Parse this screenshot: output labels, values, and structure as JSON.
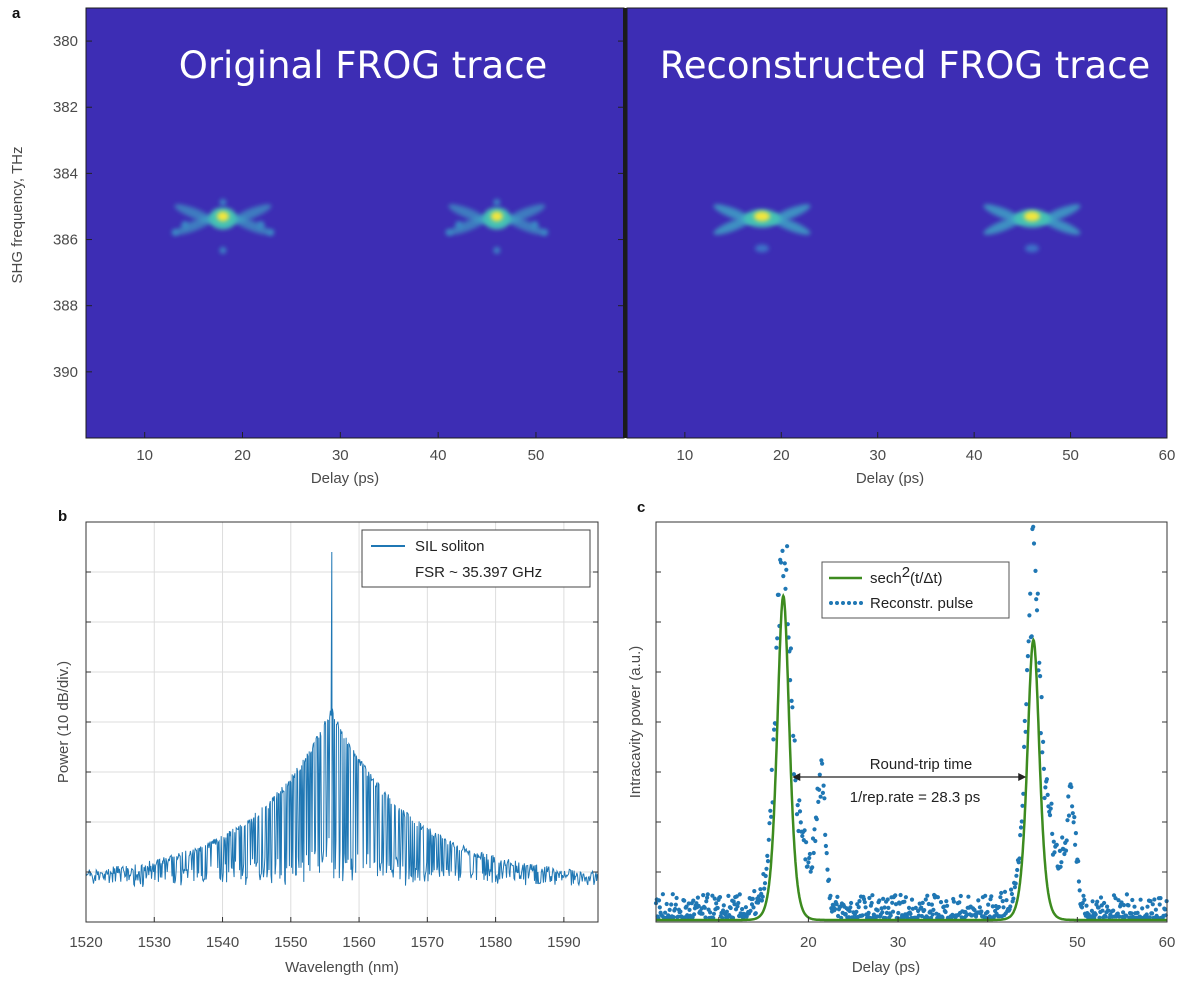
{
  "panels": [
    {
      "label": "a",
      "charts": [
        {
          "type": "heatmap",
          "title": "Original FROG trace",
          "xlabel": "Delay (ps)",
          "ylabel": "SHG frequency, THz",
          "xlim": [
            4,
            59
          ],
          "ylim": [
            379,
            392
          ],
          "xticks": [
            10,
            20,
            30,
            40,
            50
          ],
          "yticks": [
            380,
            382,
            384,
            386,
            388,
            390
          ],
          "peaks": [
            {
              "delay": 18,
              "frequency": 385.3
            },
            {
              "delay": 46,
              "frequency": 385.3
            }
          ],
          "colors": {
            "background": "#3d2db4",
            "peak": "#f2e63c"
          }
        },
        {
          "type": "heatmap",
          "title": "Reconstructed FROG trace",
          "xlabel": "Delay (ps)",
          "ylabel": "",
          "xlim": [
            4,
            60
          ],
          "ylim": [
            379,
            392
          ],
          "xticks": [
            10,
            20,
            30,
            40,
            50,
            60
          ],
          "yticks": [],
          "peaks": [
            {
              "delay": 18,
              "frequency": 385.3
            },
            {
              "delay": 46,
              "frequency": 385.3
            }
          ],
          "colors": {
            "background": "#3d2db4",
            "peak": "#f2e63c"
          }
        }
      ]
    },
    {
      "label": "b",
      "chart": {
        "type": "line",
        "xlabel": "Wavelength (nm)",
        "ylabel": "Power (10 dB/div.)",
        "xlim": [
          1520,
          1595
        ],
        "xticks": [
          1520,
          1530,
          1540,
          1550,
          1560,
          1570,
          1580,
          1590
        ],
        "ydivisions": 7,
        "grid": true,
        "legend": {
          "placement": "top-right",
          "entries": [
            "SIL soliton",
            "FSR ~ 35.397 GHz"
          ]
        },
        "series": [
          {
            "name": "SIL soliton",
            "center_nm": 1556,
            "peak_div": 4.3,
            "floor_div": 0.9,
            "color": "#1f77b4"
          }
        ]
      }
    },
    {
      "label": "c",
      "chart": {
        "type": "scatter",
        "xlabel": "Delay (ps)",
        "ylabel": "Intracavity power (a.u.)",
        "xlim": [
          3,
          60
        ],
        "xticks": [
          10,
          20,
          30,
          40,
          50,
          60
        ],
        "ylim": [
          0,
          1
        ],
        "legend": {
          "placement": "top-left",
          "entries": [
            "sech",
            "2",
            "(t/Δt)",
            "Reconstr. pulse"
          ]
        },
        "series": [
          {
            "name": "sech2(t/Δt)",
            "type": "line",
            "centers": [
              17.2,
              45.1
            ],
            "amplitudes": [
              0.81,
              0.7
            ],
            "width_ps": 0.9,
            "color": "#3d8b1f"
          },
          {
            "name": "Reconstr. pulse",
            "type": "scatter",
            "centers": [
              17.2,
              45.1
            ],
            "amplitudes": [
              0.96,
              0.86
            ],
            "color": "#1f77b4"
          }
        ],
        "annotation": {
          "line1": "Round-trip time",
          "line2": "1/rep.rate = 28.3 ps",
          "x_from": 18.2,
          "x_to": 44.3
        }
      }
    }
  ]
}
